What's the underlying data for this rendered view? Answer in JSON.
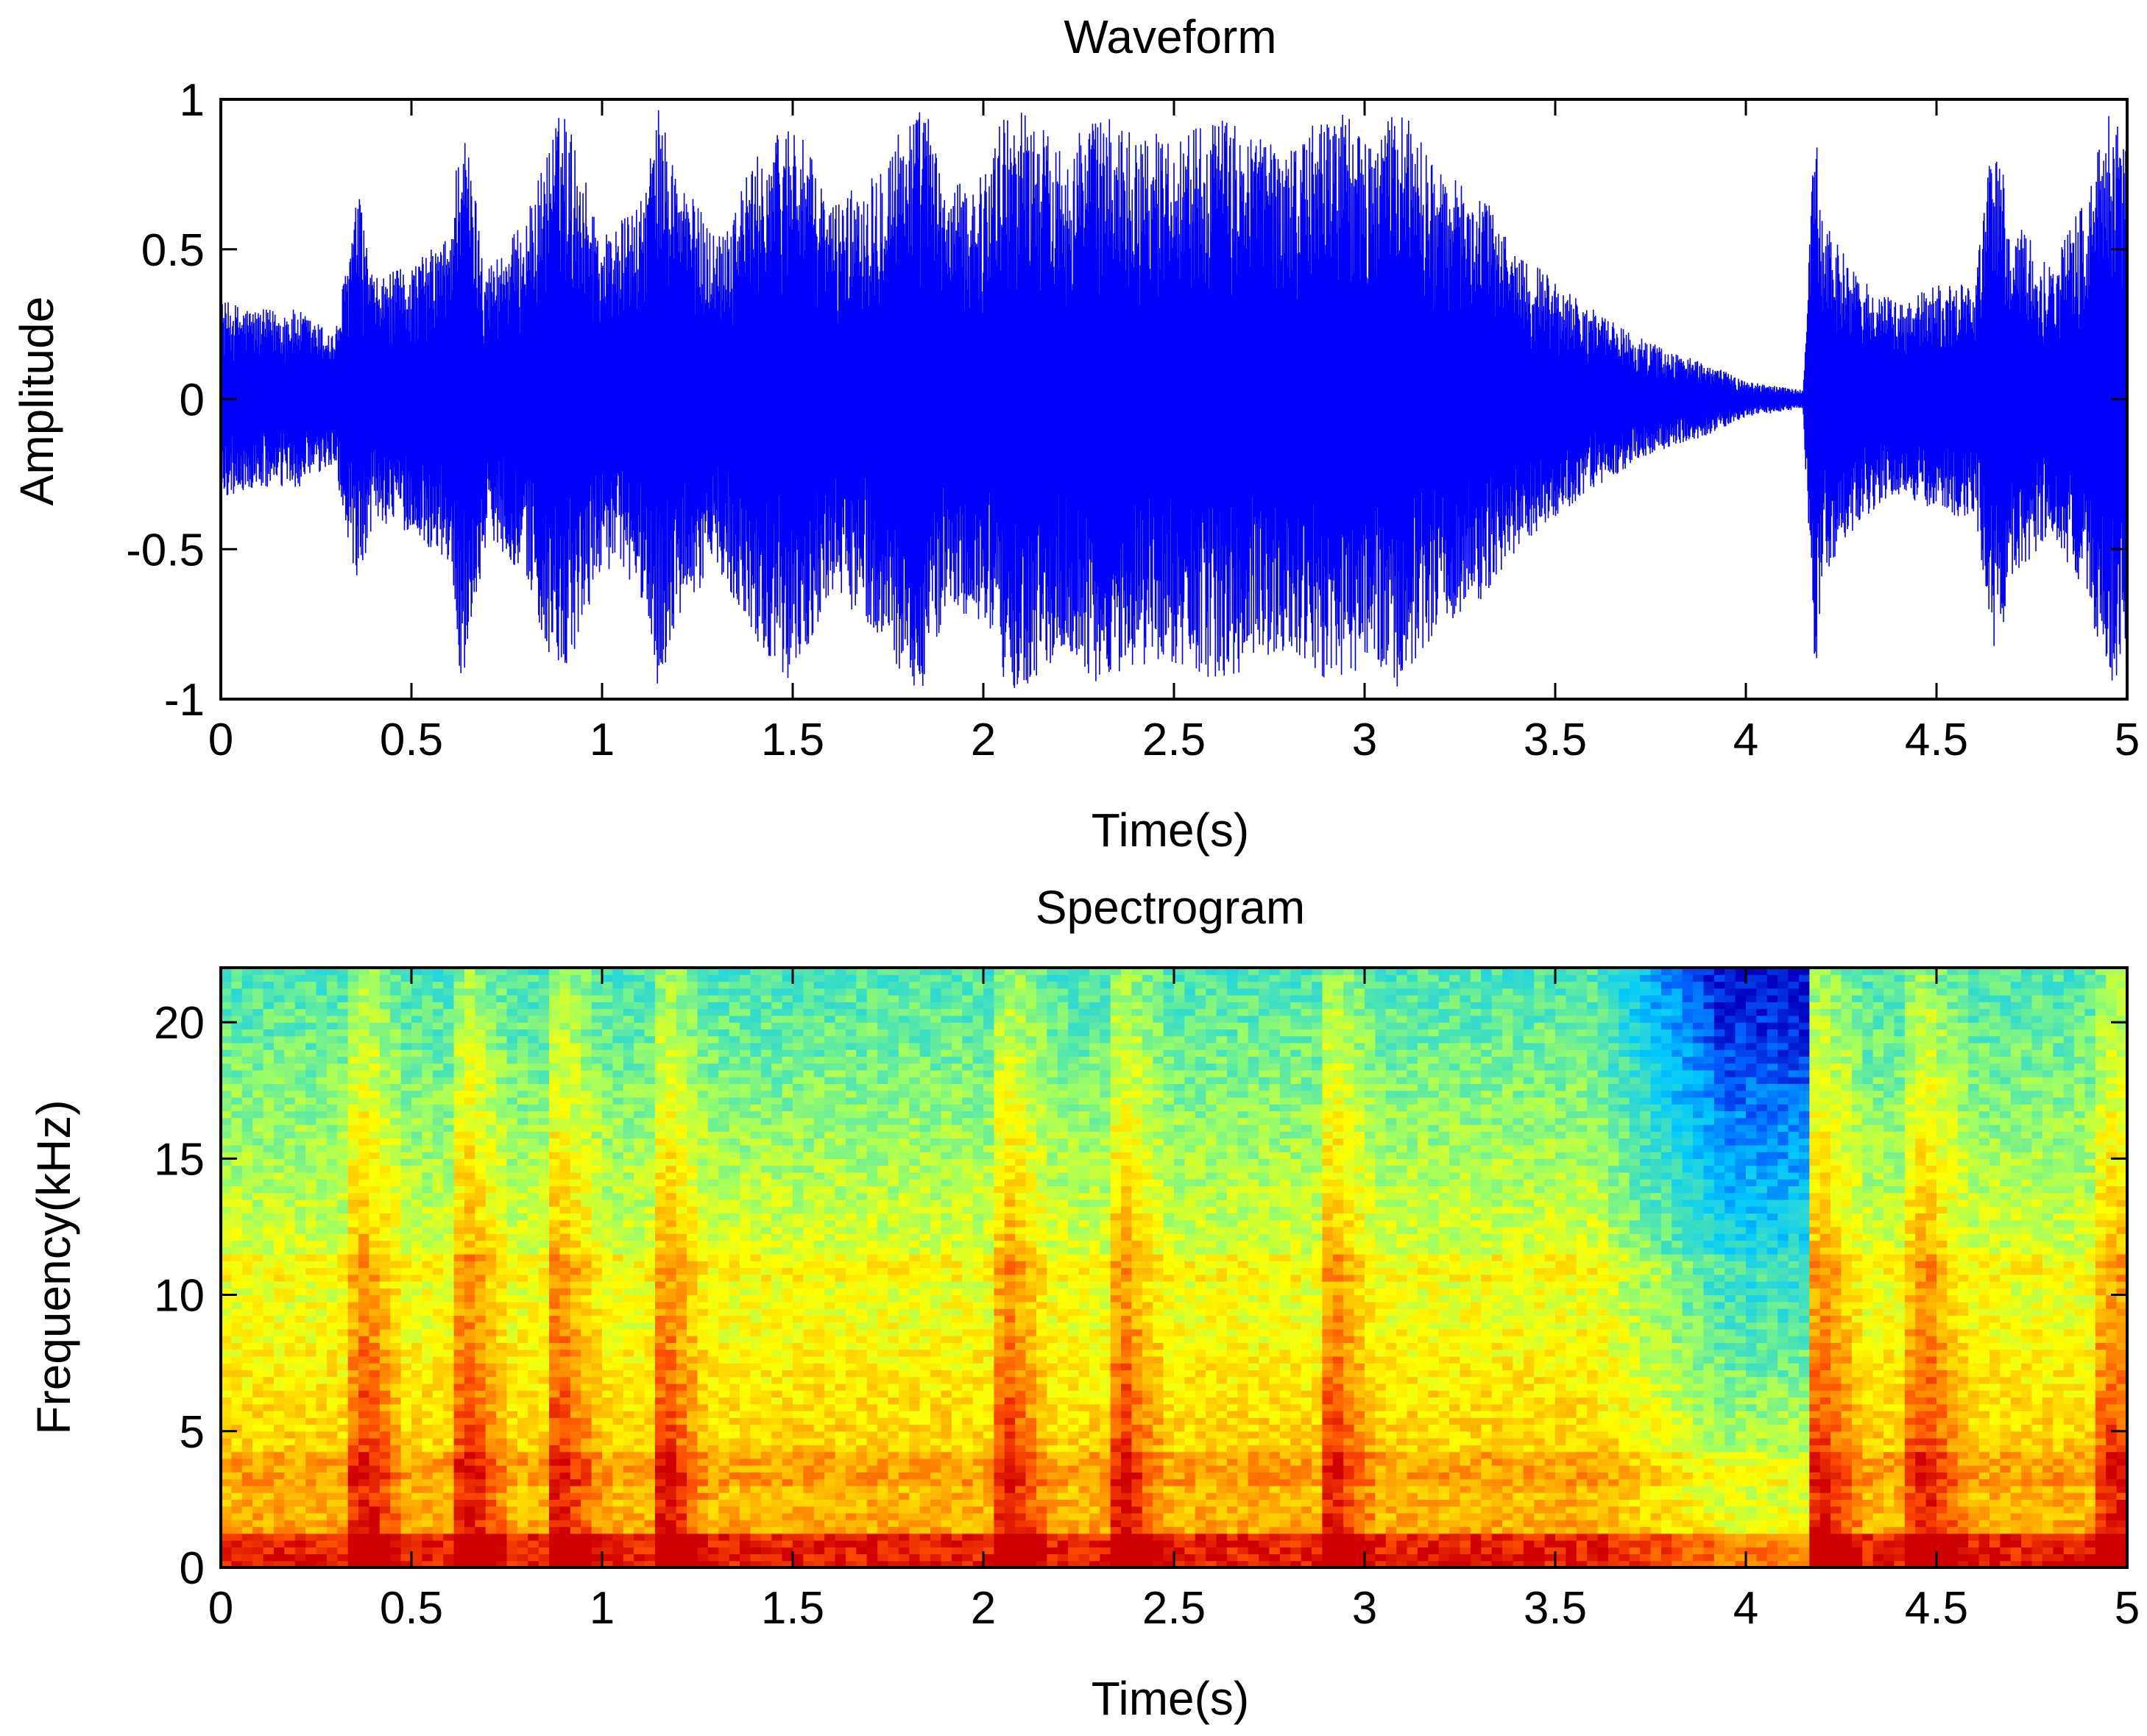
{
  "chart_data": [
    {
      "type": "line",
      "title": "Waveform",
      "xlabel": "Time(s)",
      "ylabel": "Amplitude",
      "xlim": [
        0,
        5
      ],
      "ylim": [
        -1,
        1
      ],
      "xticks": [
        "0",
        "0.5",
        "1",
        "1.5",
        "2",
        "2.5",
        "3",
        "3.5",
        "4",
        "4.5",
        "5"
      ],
      "yticks": [
        "-1",
        "-0.5",
        "0",
        "0.5",
        "1"
      ],
      "grid": false,
      "colors": {
        "series": "#0000ff"
      },
      "series": [
        {
          "x": [
            0.0,
            0.1,
            0.2,
            0.3,
            0.36,
            0.4,
            0.5,
            0.6,
            0.63,
            0.7,
            0.8,
            0.87,
            0.9,
            1.0,
            1.1,
            1.15,
            1.2,
            1.3,
            1.4,
            1.5,
            1.6,
            1.7,
            1.8,
            1.85,
            1.9,
            2.0,
            2.05,
            2.1,
            2.2,
            2.3,
            2.4,
            2.5,
            2.6,
            2.7,
            2.8,
            2.9,
            2.95,
            3.0,
            3.1,
            3.2,
            3.3,
            3.4,
            3.5,
            3.6,
            3.7,
            3.8,
            3.9,
            4.0,
            4.1,
            4.15,
            4.18,
            4.2,
            4.3,
            4.4,
            4.5,
            4.6,
            4.65,
            4.7,
            4.8,
            4.9,
            4.95,
            5.0
          ],
          "envelope": [
            0.33,
            0.3,
            0.3,
            0.22,
            0.7,
            0.4,
            0.45,
            0.55,
            0.97,
            0.45,
            0.6,
            0.9,
            0.98,
            0.55,
            0.65,
            0.98,
            0.75,
            0.55,
            0.8,
            0.95,
            0.65,
            0.75,
            0.95,
            0.98,
            0.7,
            0.75,
            0.95,
            0.98,
            0.85,
            0.95,
            0.9,
            0.88,
            0.95,
            0.9,
            0.85,
            0.95,
            0.98,
            0.85,
            0.98,
            0.75,
            0.7,
            0.5,
            0.4,
            0.3,
            0.22,
            0.16,
            0.12,
            0.06,
            0.04,
            0.03,
            0.98,
            0.6,
            0.4,
            0.32,
            0.38,
            0.4,
            0.9,
            0.6,
            0.45,
            0.7,
            0.98,
            0.85
          ]
        }
      ]
    },
    {
      "type": "heatmap",
      "title": "Spectrogram",
      "xlabel": "Time(s)",
      "ylabel": "Frequency(kHz)",
      "xlim": [
        0,
        5
      ],
      "ylim": [
        0,
        22
      ],
      "xticks": [
        "0",
        "0.5",
        "1",
        "1.5",
        "2",
        "2.5",
        "3",
        "3.5",
        "4",
        "4.5",
        "5"
      ],
      "yticks": [
        "0",
        "5",
        "10",
        "15",
        "20"
      ],
      "colormap": [
        "#0000bf",
        "#0060ff",
        "#00c8ff",
        "#40e0c0",
        "#a0ff60",
        "#ffff00",
        "#ffb000",
        "#ff5000",
        "#d00000"
      ],
      "colors": {
        "low": "#00c8ff",
        "high": "#d00000"
      },
      "onsets_s": [
        0.36,
        0.63,
        0.87,
        1.15,
        2.05,
        2.35,
        2.9,
        4.18,
        4.45,
        4.95
      ],
      "quiet_interval_s": [
        3.6,
        4.17
      ]
    }
  ]
}
